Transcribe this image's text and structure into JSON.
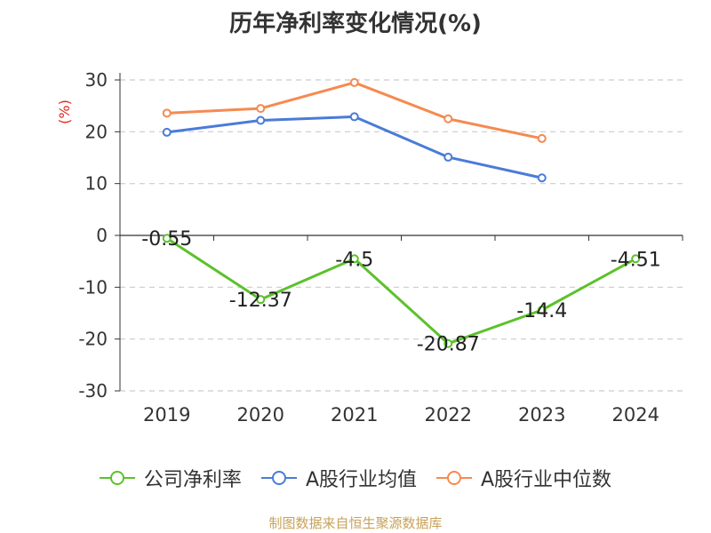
{
  "title": "历年净利率变化情况(%)",
  "source": "制图数据来自恒生聚源数据库",
  "chart_data": {
    "type": "line",
    "title": "历年净利率变化情况(%)",
    "ylabel": "(%)",
    "categories": [
      "2019",
      "2020",
      "2021",
      "2022",
      "2023",
      "2024"
    ],
    "ylim": [
      -30,
      30
    ],
    "yticks": [
      30,
      20,
      10,
      0,
      -10,
      -20,
      -30
    ],
    "grid": true,
    "legend_position": "bottom",
    "series": [
      {
        "name": "公司净利率",
        "color": "#5cc12b",
        "values": [
          -0.55,
          -12.37,
          -4.5,
          -20.87,
          -14.4,
          -4.51
        ],
        "labels": [
          "-0.55",
          "-12.37",
          "-4.5",
          "-20.87",
          "-14.4",
          "-4.51"
        ]
      },
      {
        "name": "A股行业均值",
        "color": "#4a7bd8",
        "values": [
          19.9,
          22.2,
          22.9,
          15.1,
          11.1,
          null
        ]
      },
      {
        "name": "A股行业中位数",
        "color": "#f58a50",
        "values": [
          23.6,
          24.5,
          29.5,
          22.5,
          18.7,
          null
        ]
      }
    ]
  }
}
